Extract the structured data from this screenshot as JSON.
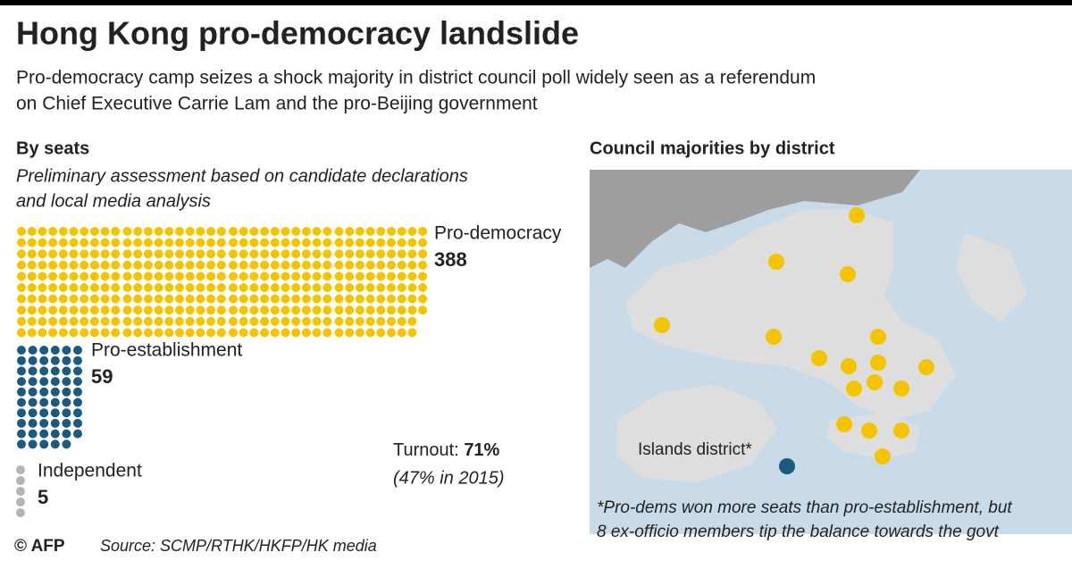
{
  "header": {
    "title": "Hong Kong pro-democracy landslide",
    "subtitle": [
      "Pro-democracy camp seizes a shock majority in district council poll widely seen as a referendum",
      "on Chief Executive Carrie Lam and the pro-Beijing government"
    ]
  },
  "chart_data": {
    "type": "waffle",
    "title": "By seats",
    "note": [
      "Preliminary assessment based on candidate declarations",
      "and local media analysis"
    ],
    "categories": [
      "Pro-democracy",
      "Pro-establishment",
      "Independent"
    ],
    "values": [
      388,
      59,
      5
    ],
    "colors": [
      "#f5c400",
      "#1d5a7e",
      "#b3b3b3"
    ]
  },
  "turnout": {
    "label": "Turnout:",
    "value": "71%",
    "note": "(47% in 2015)"
  },
  "map": {
    "title": "Council majorities by district",
    "label": "Islands district*",
    "footnote": [
      "*Pro-dems won more seats than pro-establishment, but",
      "8 ex-officio members tip the balance towards the govt"
    ]
  },
  "footer": {
    "credit": "© AFP",
    "source": "Source: SCMP/RTHK/HKFP/HK media"
  }
}
